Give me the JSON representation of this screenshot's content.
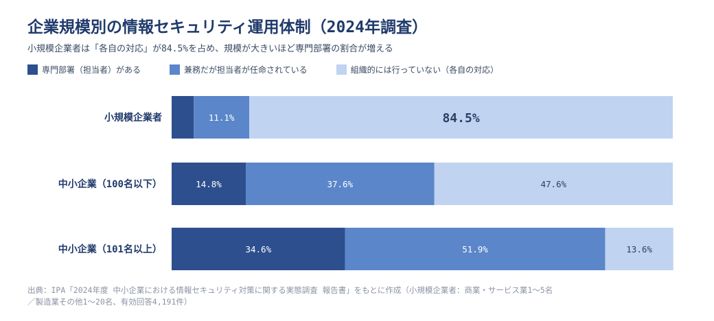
{
  "title": "企業規模別の情報セキュリティ運用体制（2024年調査）",
  "subtitle": "小規模企業者は「各自の対応」が84.5%を占め、規模が大きいほど専門部署の割合が増える",
  "source_line1": "出典：IPA「2024年度 中小企業における情報セキュリティ対策に関する実態調査 報告書」をもとに作成（小規模企業者：商業・サービス業1〜5名",
  "source_line2": "／製造業その他1〜20名、有効回答4,191件）",
  "chart_data": {
    "type": "bar",
    "orientation": "horizontal",
    "stacked": true,
    "categories": [
      "小規模企業者",
      "中小企業（100名以下）",
      "中小企業（101名以上）"
    ],
    "series": [
      {
        "name": "専門部署（担当者）がある",
        "color": "#2d4f8e",
        "values": [
          4.4,
          14.8,
          34.6
        ],
        "labels": [
          "",
          "14.8%",
          "34.6%"
        ]
      },
      {
        "name": "兼務だが担当者が任命されている",
        "color": "#5b86c9",
        "values": [
          11.1,
          37.6,
          51.9
        ],
        "labels": [
          "11.1%",
          "37.6%",
          "51.9%"
        ]
      },
      {
        "name": "組織的には行っていない（各自の対応）",
        "color": "#c0d3f0",
        "values": [
          84.5,
          47.6,
          13.6
        ],
        "labels": [
          "84.5%",
          "47.6%",
          "13.6%"
        ]
      }
    ],
    "xlim": [
      0,
      100
    ],
    "legend_position": "top-left",
    "grid": false
  }
}
